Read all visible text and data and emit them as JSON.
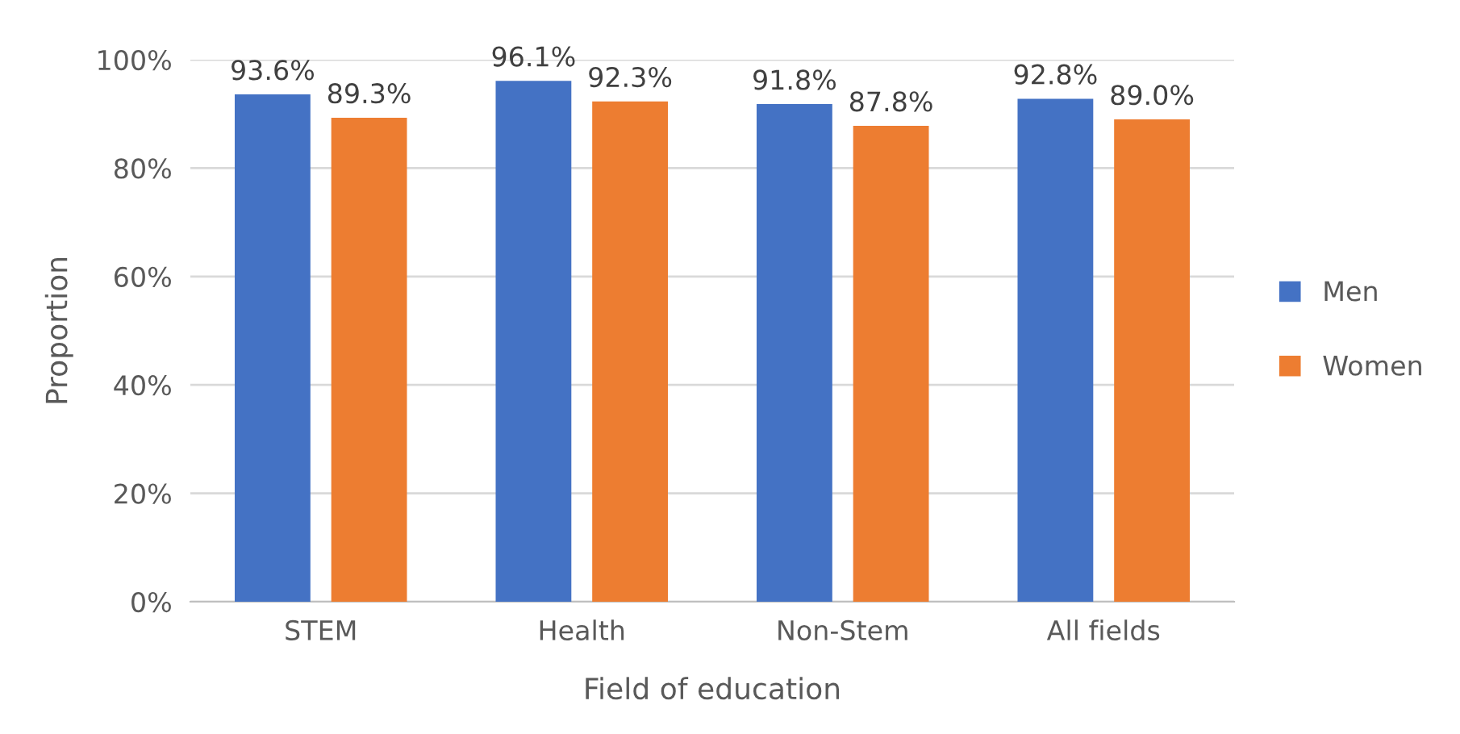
{
  "chart_data": {
    "type": "bar",
    "xlabel": "Field of education",
    "ylabel": "Proportion",
    "categories": [
      "STEM",
      "Health",
      "Non-Stem",
      "All fields"
    ],
    "series": [
      {
        "name": "Men",
        "color": "#4472c4",
        "values": [
          93.6,
          96.1,
          91.8,
          92.8
        ],
        "value_labels": [
          "93.6%",
          "96.1%",
          "91.8%",
          "92.8%"
        ]
      },
      {
        "name": "Women",
        "color": "#ed7d31",
        "values": [
          89.3,
          92.3,
          87.8,
          89.0
        ],
        "value_labels": [
          "89.3%",
          "92.3%",
          "87.8%",
          "89.0%"
        ]
      }
    ],
    "ylim": [
      0,
      100
    ],
    "yticks": [
      {
        "value": 0,
        "label": "0%"
      },
      {
        "value": 20,
        "label": "20%"
      },
      {
        "value": 40,
        "label": "40%"
      },
      {
        "value": 60,
        "label": "60%"
      },
      {
        "value": 80,
        "label": "80%"
      },
      {
        "value": 100,
        "label": "100%"
      }
    ],
    "grid": "y",
    "legend": "right"
  }
}
